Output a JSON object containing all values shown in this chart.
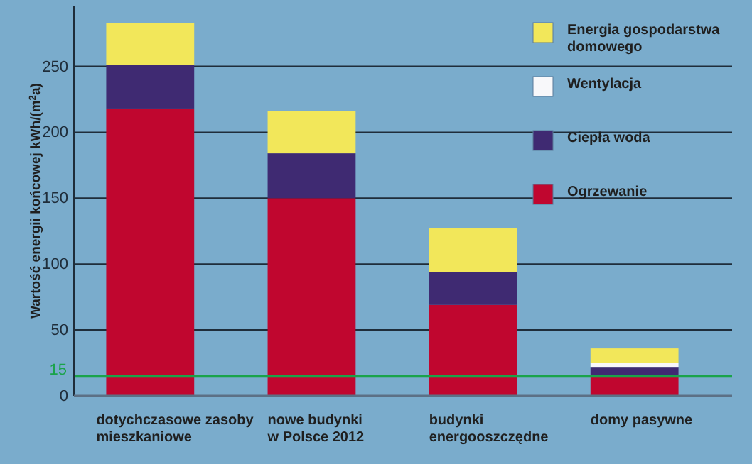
{
  "chart_data": {
    "type": "bar",
    "stacked": true,
    "ylabel": "Wartość energii końcowej kWh/(m$^{2}$a)",
    "categories": [
      "dotychczasowe zasoby mieszkaniowe",
      "nowe budynki w Polsce 2012",
      "budynki energooszczędne",
      "domy pasywne"
    ],
    "series": [
      {
        "name": "Ogrzewanie",
        "color": "#c0062f",
        "values": [
          218,
          150,
          69,
          15
        ]
      },
      {
        "name": "Ciepła woda",
        "color": "#3f2a72",
        "values": [
          33,
          34,
          25,
          7
        ]
      },
      {
        "name": "Wentylacja",
        "color": "#f8f8fa",
        "values": [
          0,
          0,
          0,
          3
        ]
      },
      {
        "name": "Energia gospodarstwa domowego",
        "color": "#f2e75a",
        "values": [
          32,
          32,
          33,
          11
        ]
      }
    ],
    "ylim": [
      0,
      296
    ],
    "yticks": [
      0,
      50,
      100,
      150,
      200,
      250
    ],
    "grid": "y",
    "legend": "top right",
    "ref_lines": [
      {
        "axis": "y",
        "value": 15,
        "label": "15",
        "color": "#1aa34a"
      }
    ]
  }
}
